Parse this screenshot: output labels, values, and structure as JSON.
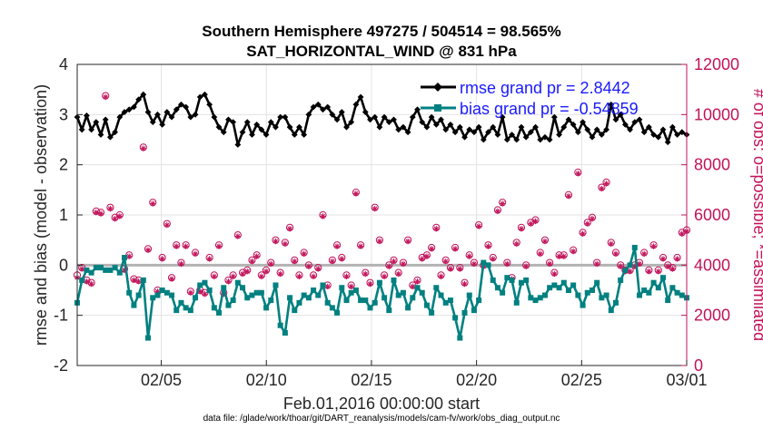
{
  "chart_data": {
    "type": "line",
    "title": "Southern Hemisphere 497275 / 504514 = 98.565%",
    "subtitle": "SAT_HORIZONTAL_WIND @ 831 hPa",
    "xlabel": "Feb.01,2016 00:00:00 start",
    "ylabel": "rmse and bias (model - observation)",
    "ylabel_right": "# of obs: o=possible; *=assimilated",
    "footnote": "data file: /glade/work/thoar/git/DART_reanalysis/models/cam-fv/work/obs_diag_output.nc",
    "xlim_days": [
      1,
      30
    ],
    "x_ticks": [
      {
        "day": 5,
        "label": "02/05"
      },
      {
        "day": 10,
        "label": "02/10"
      },
      {
        "day": 15,
        "label": "02/15"
      },
      {
        "day": 20,
        "label": "02/20"
      },
      {
        "day": 25,
        "label": "02/25"
      },
      {
        "day": 30,
        "label": "03/01"
      }
    ],
    "ylim": [
      -2,
      4
    ],
    "y_ticks": [
      "-2",
      "-1",
      "0",
      "1",
      "2",
      "3",
      "4"
    ],
    "ylim_right": [
      0,
      12000
    ],
    "y_ticks_right": [
      "0",
      "2000",
      "4000",
      "6000",
      "8000",
      "10000",
      "12000"
    ],
    "grid": true,
    "legend_position": "top-right",
    "colors": {
      "rmse": "#000000",
      "bias": "#008080",
      "obs": "#c0135a",
      "zero_line": "#b3b3b3",
      "legend_text": "#1a1aff"
    },
    "series": [
      {
        "name": "rmse grand pr = 2.8442",
        "values": [
          2.95,
          2.7,
          2.98,
          2.7,
          2.85,
          2.6,
          2.9,
          2.55,
          2.65,
          2.95,
          3.05,
          3.1,
          3.15,
          3.3,
          3.4,
          3.05,
          2.85,
          3.0,
          2.8,
          3.05,
          2.95,
          3.1,
          3.2,
          3.15,
          2.95,
          3.0,
          3.35,
          3.4,
          3.2,
          2.95,
          2.75,
          2.65,
          2.9,
          2.85,
          2.4,
          2.65,
          2.85,
          2.6,
          2.8,
          2.7,
          2.6,
          2.85,
          2.75,
          2.95,
          2.95,
          2.75,
          2.6,
          2.75,
          2.6,
          3.0,
          3.15,
          3.2,
          3.1,
          3.15,
          3.0,
          2.9,
          3.05,
          2.75,
          2.85,
          3.2,
          3.35,
          3.05,
          2.9,
          2.95,
          2.75,
          2.95,
          2.85,
          2.9,
          2.7,
          2.75,
          2.65,
          2.95,
          3.1,
          2.85,
          2.75,
          2.95,
          2.8,
          2.9,
          2.7,
          2.8,
          2.65,
          2.75,
          2.55,
          2.7,
          2.65,
          2.75,
          2.5,
          2.65,
          2.75,
          2.6,
          2.95,
          2.5,
          2.6,
          2.5,
          2.75,
          2.55,
          2.65,
          2.75,
          2.5,
          2.55,
          2.5,
          2.95,
          2.6,
          2.75,
          2.9,
          2.8,
          2.65,
          2.85,
          2.7,
          2.55,
          2.7,
          2.6,
          2.7,
          3.2,
          2.9,
          3.0,
          2.8,
          2.7,
          2.85,
          2.9,
          2.65,
          2.75,
          2.6,
          2.55,
          2.7,
          2.45,
          2.75,
          2.6,
          2.65,
          2.6
        ]
      },
      {
        "name": "bias grand pr = -0.54859",
        "values": [
          -0.75,
          -0.3,
          -0.1,
          -0.15,
          -0.05,
          -0.05,
          -0.1,
          -0.1,
          -0.05,
          -0.15,
          0.15,
          -0.55,
          -0.8,
          -0.6,
          -0.3,
          -1.45,
          -0.65,
          -0.6,
          -0.5,
          -0.55,
          -0.6,
          -0.9,
          -0.75,
          -0.85,
          -0.9,
          -0.65,
          -0.4,
          -0.35,
          -0.5,
          -0.85,
          -0.95,
          -0.45,
          -0.8,
          -0.7,
          -0.35,
          -0.45,
          -0.65,
          -0.6,
          -0.55,
          -0.55,
          -0.85,
          -0.7,
          -0.4,
          -1.2,
          -1.35,
          -0.65,
          -0.9,
          -0.75,
          -0.6,
          -0.65,
          -0.5,
          -0.6,
          -0.4,
          -0.75,
          -0.85,
          -0.95,
          -0.45,
          -0.7,
          -0.55,
          -0.5,
          -0.7,
          -0.7,
          -0.85,
          -0.75,
          -0.35,
          -0.65,
          -0.9,
          -0.3,
          -0.6,
          -0.55,
          -0.85,
          -0.65,
          -0.45,
          -0.55,
          -0.8,
          -0.95,
          -0.45,
          -0.6,
          -0.75,
          -0.7,
          -1.05,
          -1.45,
          -0.95,
          -0.6,
          -0.9,
          -0.7,
          0.05,
          0.0,
          -0.3,
          -0.45,
          -0.55,
          -0.25,
          -0.3,
          -0.75,
          -0.35,
          -0.3,
          -0.65,
          -0.7,
          -0.65,
          -0.6,
          -0.45,
          -0.4,
          -0.45,
          -0.35,
          -0.5,
          -0.4,
          -0.6,
          -0.8,
          -0.55,
          -0.5,
          -0.35,
          -0.65,
          -0.6,
          -0.9,
          -0.75,
          -0.3,
          -0.1,
          0.0,
          0.35,
          -0.6,
          -0.5,
          -0.55,
          -0.35,
          -0.45,
          -0.25,
          -0.7,
          -0.45,
          -0.55,
          -0.6,
          -0.65
        ]
      },
      {
        "name": "possible",
        "values": [
          3600,
          3900,
          3400,
          3300,
          6150,
          6100,
          10750,
          6300,
          5900,
          6000,
          3850,
          4400,
          3450,
          3400,
          8700,
          4650,
          6500,
          3000,
          4300,
          5650,
          3500,
          4800,
          4100,
          4800,
          2950,
          4500,
          3000,
          2900,
          4300,
          3600,
          4800,
          2900,
          3400,
          3600,
          5200,
          3700,
          3800,
          4200,
          4400,
          3600,
          3800,
          4100,
          5000,
          3700,
          4900,
          5500,
          4200,
          3600,
          4500,
          4000,
          3600,
          3900,
          6000,
          3200,
          4200,
          4800,
          4300,
          3600,
          3200,
          6900,
          4800,
          3700,
          3300,
          6300,
          5000,
          3600,
          4000,
          4200,
          3700,
          4100,
          5000,
          3200,
          3400,
          4300,
          4400,
          4700,
          5500,
          3600,
          4200,
          3900,
          4700,
          3900,
          3300,
          4400,
          4100,
          5600,
          4000,
          4800,
          4300,
          6200,
          6500,
          4100,
          3500,
          4900,
          5500,
          4000,
          5700,
          5800,
          4500,
          5000,
          4100,
          3700,
          4400,
          4400,
          6800,
          4600,
          7700,
          5300,
          5700,
          5900,
          4100,
          7100,
          7300,
          4900,
          4500,
          4000,
          3800,
          3800,
          4000,
          4100,
          4500,
          3800,
          4800,
          3800,
          4300,
          4000,
          3900,
          4300,
          5300,
          5400
        ]
      },
      {
        "name": "assimilated",
        "values": [
          3500,
          3850,
          3350,
          3250,
          6100,
          6050,
          10700,
          6250,
          5850,
          5950,
          3800,
          4350,
          3400,
          3350,
          8650,
          4600,
          6450,
          2950,
          4250,
          5600,
          3450,
          4750,
          4050,
          4750,
          2900,
          4450,
          2950,
          2850,
          4250,
          3550,
          4750,
          2850,
          3350,
          3550,
          5150,
          3650,
          3750,
          4150,
          4350,
          3550,
          3750,
          4050,
          4950,
          3650,
          4850,
          5450,
          4150,
          3550,
          4450,
          3950,
          3550,
          3850,
          5950,
          3150,
          4150,
          4750,
          4250,
          3550,
          3150,
          6850,
          4750,
          3650,
          3250,
          6250,
          4950,
          3550,
          3950,
          4150,
          3650,
          4050,
          4950,
          3150,
          3350,
          4250,
          4350,
          4650,
          5450,
          3550,
          4150,
          3850,
          4650,
          3850,
          3250,
          4350,
          4050,
          5550,
          3950,
          4750,
          4250,
          6150,
          6450,
          4050,
          3450,
          4850,
          5450,
          3950,
          5650,
          5750,
          4450,
          4950,
          4050,
          3650,
          4350,
          4350,
          6750,
          4550,
          7650,
          5250,
          5650,
          5850,
          4050,
          7050,
          7250,
          4850,
          4450,
          3950,
          3750,
          3750,
          3950,
          4050,
          4450,
          3750,
          4750,
          3750,
          4250,
          3950,
          3850,
          4250,
          5250,
          5350
        ]
      }
    ]
  }
}
